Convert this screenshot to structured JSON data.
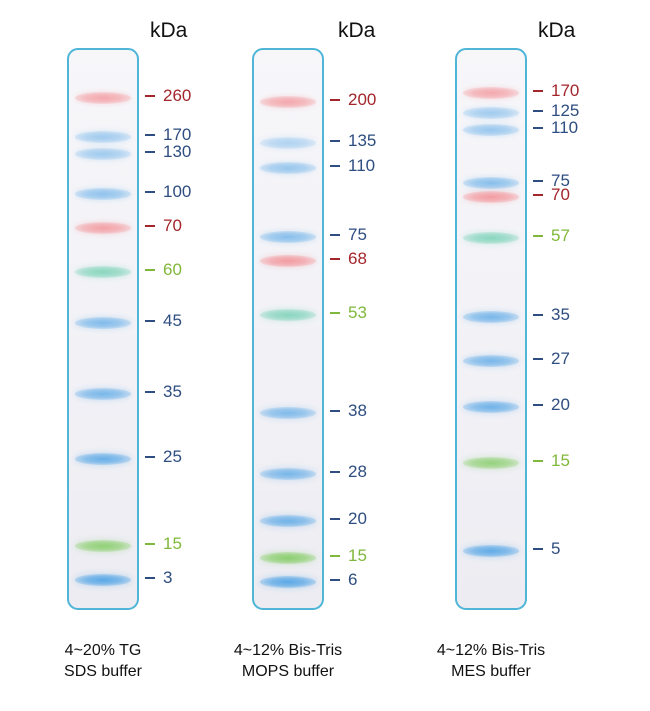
{
  "colors": {
    "red": "#f2878c",
    "blue": "#5aa8e6",
    "green": "#8ccf70",
    "teal": "#6fcfb0",
    "label_red": "#a3262c",
    "label_blue": "#2e4d80",
    "label_green": "#7fb83a",
    "gel_border": "#4fb6d8"
  },
  "unit_label": "kDa",
  "lanes": [
    {
      "caption_line1": "4~20% TG",
      "caption_line2": "SDS buffer",
      "markers": [
        {
          "label": "260",
          "color": "red",
          "label_color": "label_red",
          "intensity": 0.7
        },
        {
          "label": "170",
          "color": "blue",
          "label_color": "label_blue",
          "intensity": 0.55
        },
        {
          "label": "130",
          "color": "blue",
          "label_color": "label_blue",
          "intensity": 0.55
        },
        {
          "label": "100",
          "color": "blue",
          "label_color": "label_blue",
          "intensity": 0.65
        },
        {
          "label": "70",
          "color": "red",
          "label_color": "label_red",
          "intensity": 0.75
        },
        {
          "label": "60",
          "color": "teal",
          "label_color": "label_green",
          "intensity": 0.8
        },
        {
          "label": "45",
          "color": "blue",
          "label_color": "label_blue",
          "intensity": 0.75
        },
        {
          "label": "35",
          "color": "blue",
          "label_color": "label_blue",
          "intensity": 0.8
        },
        {
          "label": "25",
          "color": "blue",
          "label_color": "label_blue",
          "intensity": 0.9
        },
        {
          "label": "15",
          "color": "green",
          "label_color": "label_green",
          "intensity": 0.95
        },
        {
          "label": "3",
          "color": "blue",
          "label_color": "label_blue",
          "intensity": 1.0
        }
      ]
    },
    {
      "caption_line1": "4~12% Bis-Tris",
      "caption_line2": "MOPS buffer",
      "markers": [
        {
          "label": "200",
          "color": "red",
          "label_color": "label_red",
          "intensity": 0.7
        },
        {
          "label": "135",
          "color": "blue",
          "label_color": "label_blue",
          "intensity": 0.45
        },
        {
          "label": "110",
          "color": "blue",
          "label_color": "label_blue",
          "intensity": 0.6
        },
        {
          "label": "75",
          "color": "blue",
          "label_color": "label_blue",
          "intensity": 0.7
        },
        {
          "label": "68",
          "color": "red",
          "label_color": "label_red",
          "intensity": 0.8
        },
        {
          "label": "53",
          "color": "teal",
          "label_color": "label_green",
          "intensity": 0.8
        },
        {
          "label": "38",
          "color": "blue",
          "label_color": "label_blue",
          "intensity": 0.75
        },
        {
          "label": "28",
          "color": "blue",
          "label_color": "label_blue",
          "intensity": 0.8
        },
        {
          "label": "20",
          "color": "blue",
          "label_color": "label_blue",
          "intensity": 0.85
        },
        {
          "label": "15",
          "color": "green",
          "label_color": "label_green",
          "intensity": 1.0
        },
        {
          "label": "6",
          "color": "blue",
          "label_color": "label_blue",
          "intensity": 1.0
        }
      ]
    },
    {
      "caption_line1": "4~12% Bis-Tris",
      "caption_line2": "MES buffer",
      "markers": [
        {
          "label": "170",
          "color": "red",
          "label_color": "label_red",
          "intensity": 0.7
        },
        {
          "label": "125",
          "color": "blue",
          "label_color": "label_blue",
          "intensity": 0.55
        },
        {
          "label": "110",
          "color": "blue",
          "label_color": "label_blue",
          "intensity": 0.6
        },
        {
          "label": "75",
          "color": "blue",
          "label_color": "label_blue",
          "intensity": 0.7
        },
        {
          "label": "70",
          "color": "red",
          "label_color": "label_red",
          "intensity": 0.8
        },
        {
          "label": "57",
          "color": "teal",
          "label_color": "label_green",
          "intensity": 0.8
        },
        {
          "label": "35",
          "color": "blue",
          "label_color": "label_blue",
          "intensity": 0.8
        },
        {
          "label": "27",
          "color": "blue",
          "label_color": "label_blue",
          "intensity": 0.8
        },
        {
          "label": "20",
          "color": "blue",
          "label_color": "label_blue",
          "intensity": 0.85
        },
        {
          "label": "15",
          "color": "green",
          "label_color": "label_green",
          "intensity": 0.9
        },
        {
          "label": "5",
          "color": "blue",
          "label_color": "label_blue",
          "intensity": 0.95
        }
      ]
    }
  ]
}
